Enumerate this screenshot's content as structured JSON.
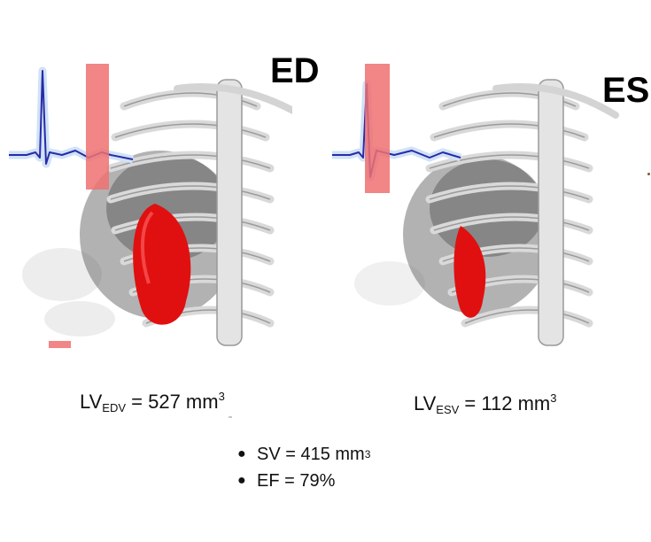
{
  "phases": {
    "ed": "ED",
    "es": "ES"
  },
  "volumes": {
    "edv": {
      "prefix": "LV",
      "sub": "EDV",
      "equals": "= 527 mm",
      "sup": "3"
    },
    "esv": {
      "prefix": "LV",
      "sub": "ESV",
      "equals": "= 112 mm",
      "sup": "3"
    }
  },
  "results": [
    {
      "text": "SV = 415 mm",
      "sup": "3"
    },
    {
      "text": "EF = 79%",
      "sup": ""
    }
  ],
  "colors": {
    "heart": "#e01010",
    "ecg_line": "#2a2aa8",
    "ecg_glow": "#cfe2f7",
    "phase_marker": "#f07070",
    "bone": "#d8d8d8"
  }
}
